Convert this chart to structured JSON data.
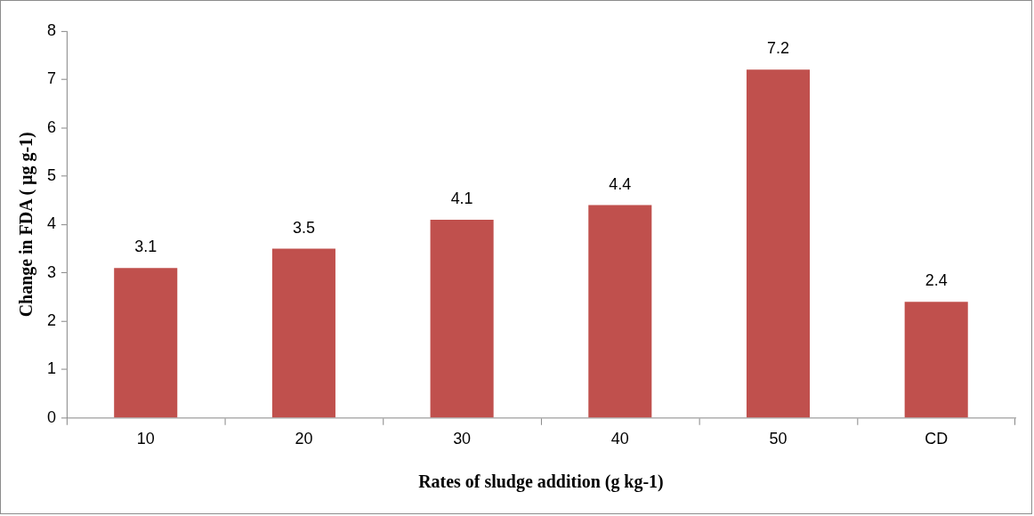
{
  "chart_data": {
    "type": "bar",
    "xlabel": "Rates of sludge addition (g kg-1)",
    "ylabel": "Change in FDA ( µg g-1)",
    "categories": [
      "10",
      "20",
      "30",
      "40",
      "50",
      "CD"
    ],
    "values": [
      3.1,
      3.5,
      4.1,
      4.4,
      7.2,
      2.4
    ],
    "color": "#c0504d",
    "ylim": [
      0,
      8
    ],
    "yticks": [
      0,
      1,
      2,
      3,
      4,
      5,
      6,
      7,
      8
    ],
    "grid": false,
    "legend": false,
    "data_labels": true
  }
}
